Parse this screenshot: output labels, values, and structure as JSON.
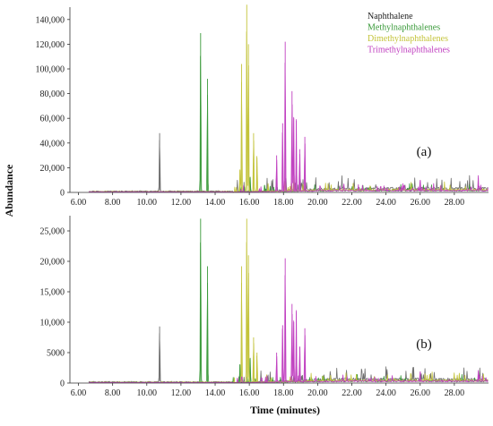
{
  "chart_data": [
    {
      "type": "line",
      "panel_label": "(a)",
      "xlim": [
        5.5,
        30.0
      ],
      "ylim": [
        0,
        150000
      ],
      "yticks": [
        0,
        20000,
        40000,
        60000,
        80000,
        100000,
        120000,
        140000
      ],
      "yticklabels": [
        "0",
        "20,000",
        "40,000",
        "60,000",
        "80,000",
        "100,000",
        "120,000",
        "140,000"
      ],
      "xticks": [
        6,
        8,
        10,
        12,
        14,
        16,
        18,
        20,
        22,
        24,
        26,
        28
      ],
      "xticklabels": [
        "6.00",
        "8.00",
        "10.00",
        "12.00",
        "14.00",
        "16.00",
        "18.00",
        "20.00",
        "22.00",
        "24.00",
        "26.00",
        "28.00"
      ],
      "legend_position": "top-right",
      "series": [
        {
          "name": "Naphthalene",
          "color": "#6e6e6e",
          "baseline": 3000,
          "peaks": [
            [
              10.75,
              48000
            ]
          ]
        },
        {
          "name": "Methylnaphthalenes",
          "color": "#3a9a3a",
          "baseline": 1500,
          "peaks": [
            [
              13.15,
              129000
            ],
            [
              13.55,
              92000
            ],
            [
              15.45,
              8000
            ],
            [
              16.05,
              12000
            ],
            [
              16.9,
              6000
            ]
          ]
        },
        {
          "name": "Dimethylnaphthalenes",
          "color": "#c4c43c",
          "baseline": 2000,
          "peaks": [
            [
              15.45,
              18000
            ],
            [
              15.55,
              104000
            ],
            [
              15.85,
              152000
            ],
            [
              15.95,
              120000
            ],
            [
              16.25,
              48000
            ],
            [
              16.45,
              28000
            ],
            [
              17.1,
              6000
            ],
            [
              18.1,
              9000
            ],
            [
              18.6,
              8000
            ]
          ]
        },
        {
          "name": "Trimethylnaphthalenes",
          "color": "#c040c0",
          "baseline": 1500,
          "peaks": [
            [
              17.6,
              30000
            ],
            [
              17.95,
              56000
            ],
            [
              18.1,
              122000
            ],
            [
              18.5,
              82000
            ],
            [
              18.6,
              60000
            ],
            [
              18.75,
              58000
            ],
            [
              18.95,
              35000
            ],
            [
              19.25,
              45000
            ],
            [
              26.0,
              10000
            ],
            [
              29.4,
              12000
            ]
          ]
        }
      ]
    },
    {
      "type": "line",
      "panel_label": "(b)",
      "xlim": [
        5.5,
        30.0
      ],
      "ylim": [
        0,
        27500
      ],
      "yticks": [
        0,
        5000,
        10000,
        15000,
        20000,
        25000
      ],
      "yticklabels": [
        "0",
        "5000",
        "10,000",
        "15,000",
        "20,000",
        "25,000"
      ],
      "xticks": [
        6,
        8,
        10,
        12,
        14,
        16,
        18,
        20,
        22,
        24,
        26,
        28
      ],
      "xticklabels": [
        "6.00",
        "8.00",
        "10.00",
        "12.00",
        "14.00",
        "16.00",
        "18.00",
        "20.00",
        "22.00",
        "24.00",
        "26.00",
        "28.00"
      ],
      "series": [
        {
          "name": "Naphthalene",
          "color": "#6e6e6e",
          "baseline": 600,
          "peaks": [
            [
              10.75,
              9300
            ]
          ]
        },
        {
          "name": "Methylnaphthalenes",
          "color": "#3a9a3a",
          "baseline": 300,
          "peaks": [
            [
              13.15,
              27000
            ],
            [
              13.55,
              19200
            ],
            [
              15.45,
              3000
            ],
            [
              16.05,
              4000
            ]
          ]
        },
        {
          "name": "Dimethylnaphthalenes",
          "color": "#c4c43c",
          "baseline": 400,
          "peaks": [
            [
              15.55,
              19200
            ],
            [
              15.85,
              27000
            ],
            [
              15.95,
              21000
            ],
            [
              16.25,
              7500
            ],
            [
              16.45,
              5000
            ]
          ]
        },
        {
          "name": "Trimethylnaphthalenes",
          "color": "#c040c0",
          "baseline": 300,
          "peaks": [
            [
              17.6,
              5000
            ],
            [
              17.95,
              9500
            ],
            [
              18.1,
              20500
            ],
            [
              18.5,
              13000
            ],
            [
              18.6,
              10000
            ],
            [
              18.75,
              11700
            ],
            [
              18.95,
              6000
            ],
            [
              19.25,
              9000
            ],
            [
              26.0,
              1800
            ],
            [
              29.4,
              1800
            ]
          ]
        }
      ]
    }
  ],
  "axes": {
    "xlabel": "Time (minutes)",
    "ylabel": "Abundance"
  }
}
